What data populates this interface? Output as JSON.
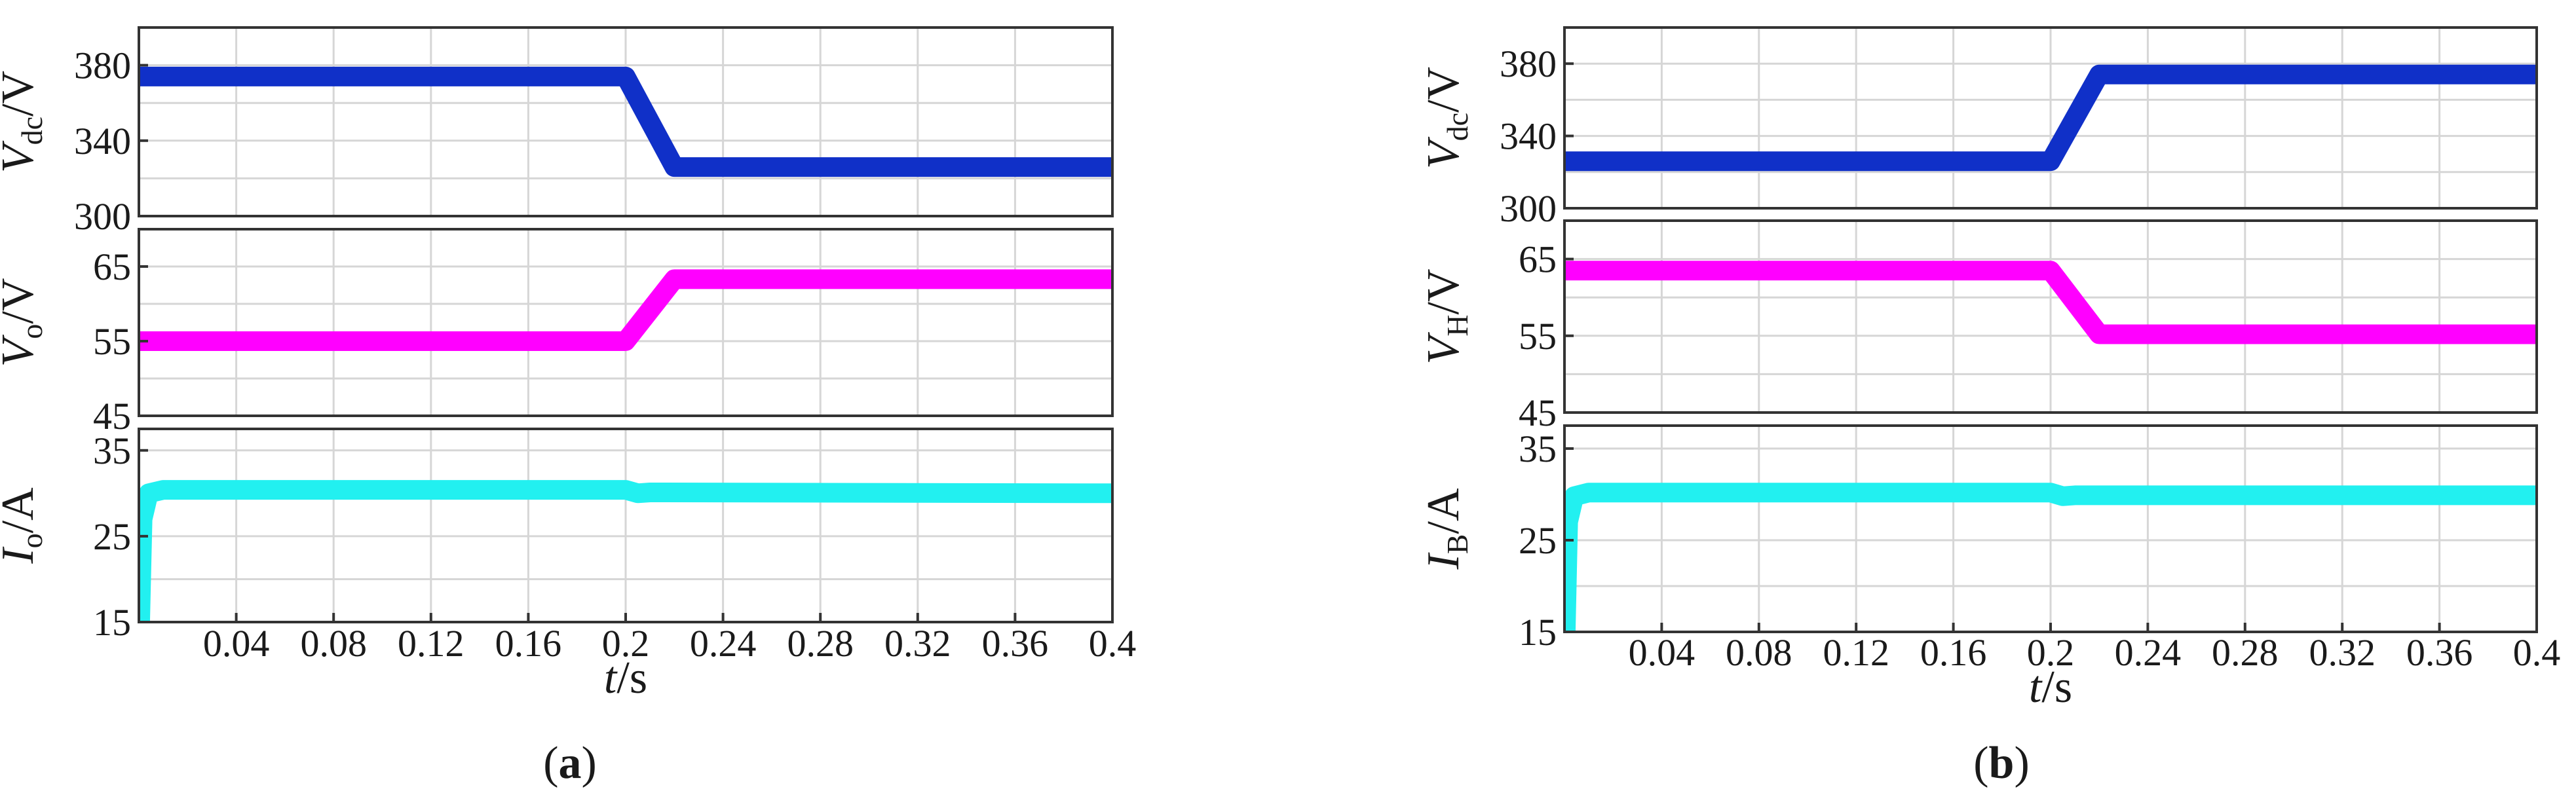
{
  "chart_data": [
    {
      "type": "line",
      "caption": {
        "open": "(",
        "letter": "a",
        "close": ")"
      },
      "xlabel": {
        "main": "t",
        "unit": "/s"
      },
      "xlim": [
        0,
        0.4
      ],
      "xticks": [
        0.04,
        0.08,
        0.12,
        0.16,
        0.2,
        0.24,
        0.28,
        0.32,
        0.36,
        0.4
      ],
      "xtick_labels": [
        "0.04",
        "0.08",
        "0.12",
        "0.16",
        "0.2",
        "0.24",
        "0.28",
        "0.32",
        "0.36",
        "0.4"
      ],
      "grid": true,
      "panels": [
        {
          "ylabel": {
            "main": "V",
            "sub": "dc",
            "unit": "/V"
          },
          "ylim": [
            300,
            400
          ],
          "yticks": [
            300,
            340,
            380
          ],
          "ytick_labels": [
            "300",
            "340",
            "380"
          ],
          "color": "#1030c8",
          "series": [
            {
              "x": [
                0,
                0.2,
                0.22,
                0.4
              ],
              "y": [
                374,
                374,
                326,
                326
              ]
            }
          ]
        },
        {
          "ylabel": {
            "main": "V",
            "sub": "o",
            "unit": "/V"
          },
          "ylim": [
            45,
            70
          ],
          "yticks": [
            45,
            55,
            65
          ],
          "ytick_labels": [
            "45",
            "55",
            "65"
          ],
          "color": "#ff00ff",
          "series": [
            {
              "x": [
                0,
                0.2,
                0.22,
                0.4
              ],
              "y": [
                55,
                55,
                63.3,
                63.3
              ]
            }
          ]
        },
        {
          "ylabel": {
            "main": "I",
            "sub": "o",
            "unit": "/A"
          },
          "ylim": [
            15,
            37.5
          ],
          "yticks": [
            15,
            25,
            35
          ],
          "ytick_labels": [
            "15",
            "25",
            "35"
          ],
          "color": "#22f0f0",
          "series": [
            {
              "x": [
                0.0005,
                0.0015,
                0.004,
                0.01,
                0.2,
                0.205,
                0.21,
                0.4
              ],
              "y": [
                15,
                27,
                30,
                30.4,
                30.4,
                30.0,
                30.1,
                30.0
              ]
            }
          ]
        }
      ]
    },
    {
      "type": "line",
      "caption": {
        "open": "(",
        "letter": "b",
        "close": ")"
      },
      "xlabel": {
        "main": "t",
        "unit": "/s"
      },
      "xlim": [
        0,
        0.4
      ],
      "xticks": [
        0.04,
        0.08,
        0.12,
        0.16,
        0.2,
        0.24,
        0.28,
        0.32,
        0.36,
        0.4
      ],
      "xtick_labels": [
        "0.04",
        "0.08",
        "0.12",
        "0.16",
        "0.2",
        "0.24",
        "0.28",
        "0.32",
        "0.36",
        "0.4"
      ],
      "grid": true,
      "panels": [
        {
          "ylabel": {
            "main": "V",
            "sub": "dc",
            "unit": "/V"
          },
          "ylim": [
            300,
            400
          ],
          "yticks": [
            300,
            340,
            380
          ],
          "ytick_labels": [
            "300",
            "340",
            "380"
          ],
          "color": "#1030c8",
          "series": [
            {
              "x": [
                0,
                0.2,
                0.22,
                0.4
              ],
              "y": [
                326,
                326,
                374,
                374
              ]
            }
          ]
        },
        {
          "ylabel": {
            "main": "V",
            "sub": "H",
            "unit": "/V"
          },
          "ylim": [
            45,
            70
          ],
          "yticks": [
            45,
            55,
            65
          ],
          "ytick_labels": [
            "45",
            "55",
            "65"
          ],
          "color": "#ff00ff",
          "series": [
            {
              "x": [
                0,
                0.2,
                0.22,
                0.4
              ],
              "y": [
                63.5,
                63.5,
                55.2,
                55.2
              ]
            }
          ]
        },
        {
          "ylabel": {
            "main": "I",
            "sub": "B",
            "unit": "/A"
          },
          "ylim": [
            15,
            37.5
          ],
          "yticks": [
            15,
            25,
            35
          ],
          "ytick_labels": [
            "15",
            "25",
            "35"
          ],
          "color": "#22f0f0",
          "series": [
            {
              "x": [
                0.0005,
                0.0015,
                0.004,
                0.01,
                0.2,
                0.205,
                0.21,
                0.4
              ],
              "y": [
                15,
                27,
                29.8,
                30.2,
                30.2,
                29.8,
                29.9,
                29.9
              ]
            }
          ]
        }
      ]
    }
  ]
}
